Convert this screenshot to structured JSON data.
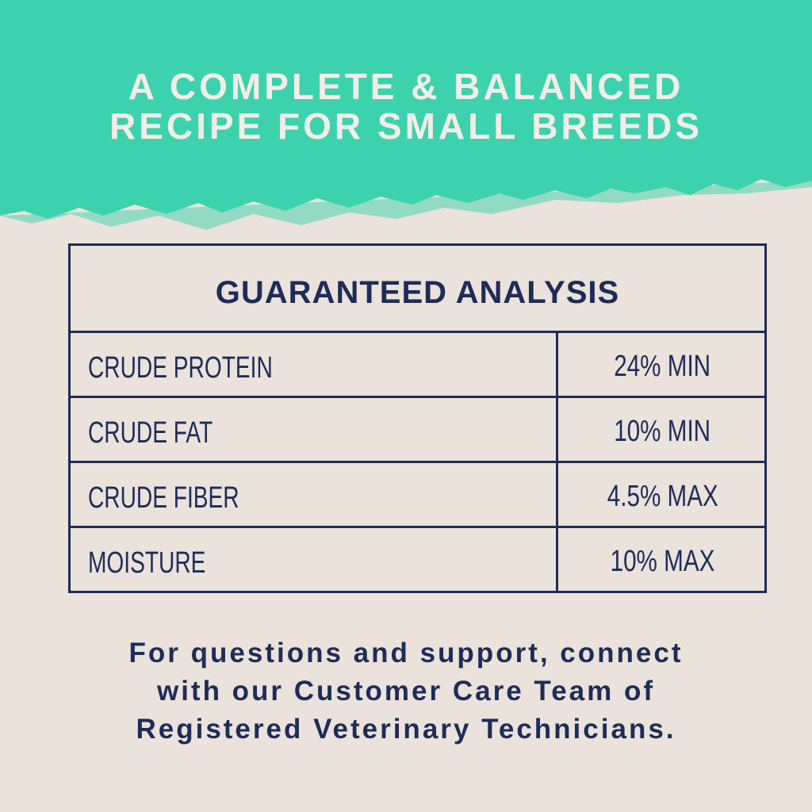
{
  "header": {
    "title_lines": [
      "A COMPLETE & BALANCED",
      "RECIPE FOR SMALL BREEDS"
    ]
  },
  "table": {
    "title": "GUARANTEED ANALYSIS",
    "rows": [
      [
        "CRUDE PROTEIN",
        "24% MIN"
      ],
      [
        "CRUDE FAT",
        "10% MIN"
      ],
      [
        "CRUDE FIBER",
        "4.5% MAX"
      ],
      [
        "MOISTURE",
        "10% MAX"
      ]
    ]
  },
  "footer": {
    "lines": [
      "For questions and support, connect",
      "with our Customer Care Team of",
      "Registered Veterinary Technicians."
    ]
  }
}
